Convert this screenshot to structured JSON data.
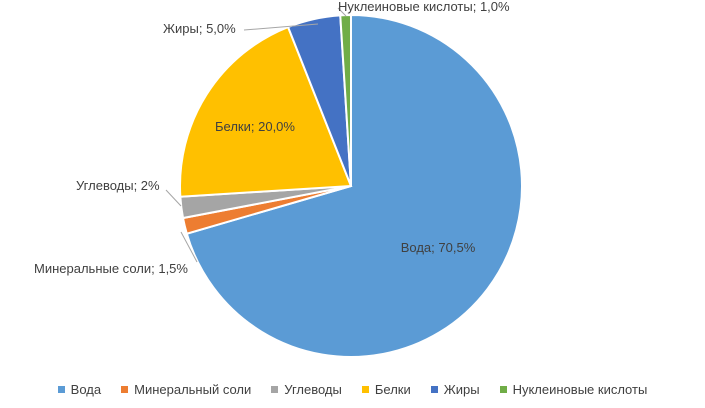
{
  "chart_data": {
    "type": "pie",
    "title": "",
    "slices": [
      {
        "name": "Вода",
        "value": 70.5,
        "label": "Вода; 70,5%",
        "color": "#5B9BD5"
      },
      {
        "name": "Минеральный соли",
        "value": 1.5,
        "label": "Минеральные соли; 1,5%",
        "color": "#ED7D31"
      },
      {
        "name": "Углеводы",
        "value": 2.0,
        "label": "Углеводы; 2%",
        "color": "#A5A5A5"
      },
      {
        "name": "Белки",
        "value": 20.0,
        "label": "Белки; 20,0%",
        "color": "#FFC000"
      },
      {
        "name": "Жиры",
        "value": 5.0,
        "label": "Жиры; 5,0%",
        "color": "#4472C4"
      },
      {
        "name": "Нуклеиновые кислоты",
        "value": 1.0,
        "label": "Нуклеиновые кислоты; 1,0%",
        "color": "#70AD47"
      }
    ],
    "legend_position": "bottom"
  }
}
